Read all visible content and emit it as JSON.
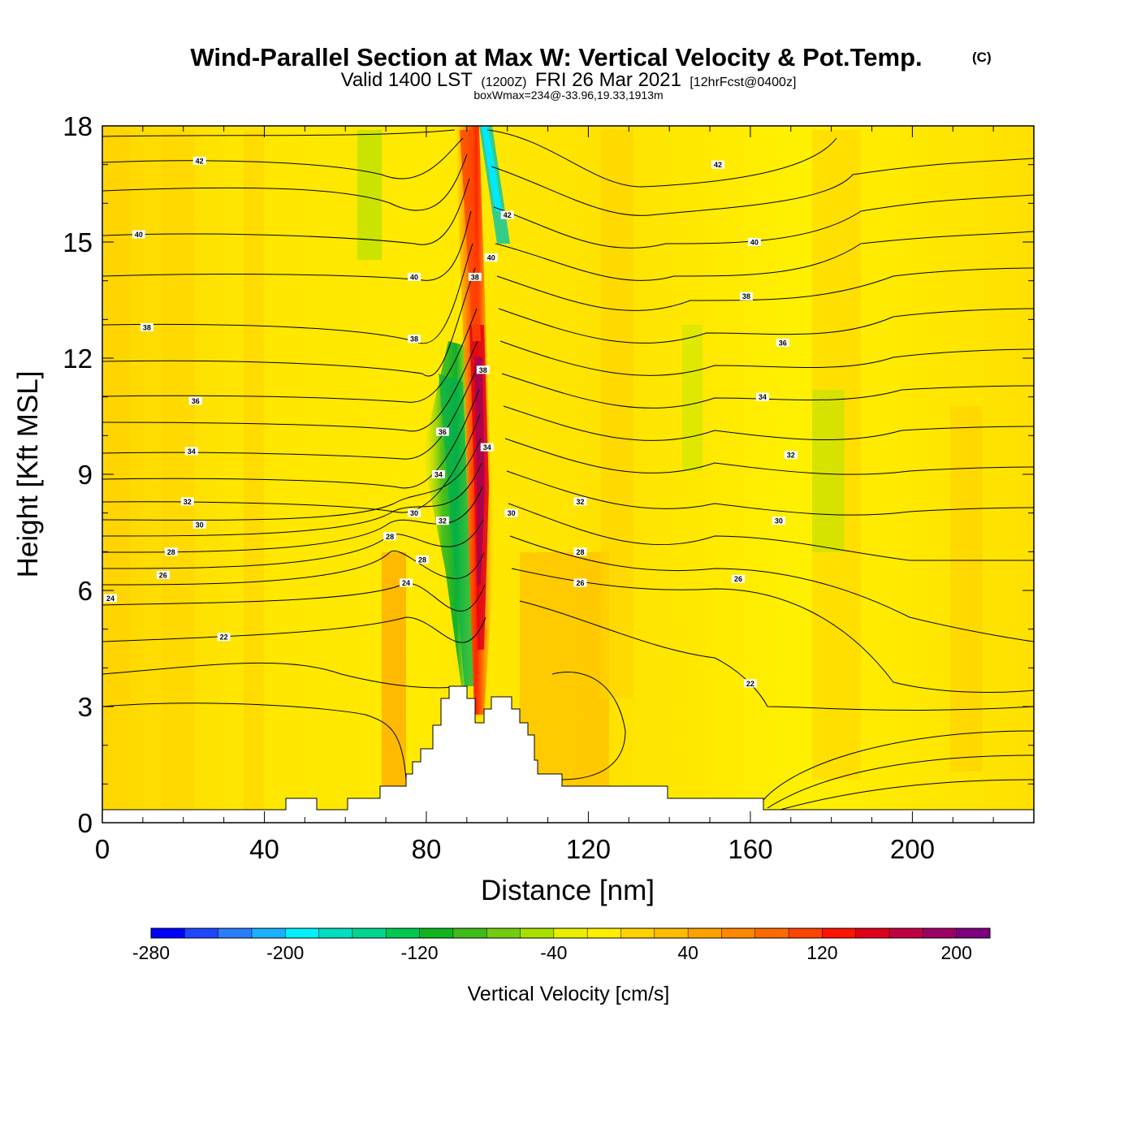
{
  "title": {
    "main": "Wind-Parallel Section at Max W: Vertical Velocity & Pot.Temp.",
    "copyright": "(C)",
    "valid_prefix": "Valid 1400 LST",
    "valid_utc": "(1200Z)",
    "valid_date": "FRI 26 Mar 2021",
    "forecast": "[12hrFcst@0400z]",
    "boxwmax": "boxWmax=234@-33.96,19.33,1913m"
  },
  "chart_data": {
    "type": "heatmap",
    "xlabel": "Distance [nm]",
    "ylabel": "Height [Kft MSL]",
    "xlim": [
      0,
      230
    ],
    "ylim": [
      0,
      18
    ],
    "x_ticks": [
      0,
      40,
      80,
      120,
      160,
      200
    ],
    "y_ticks": [
      0,
      3,
      6,
      9,
      12,
      15,
      18
    ],
    "colorbar": {
      "label": "Vertical Velocity [cm/s]",
      "min": -280,
      "max": 220,
      "step": 20,
      "ticks": [
        -280,
        -200,
        -120,
        -40,
        40,
        120,
        200
      ],
      "colors": [
        "#0000ff",
        "#1e46ff",
        "#2a7cff",
        "#18b0ff",
        "#00f0ff",
        "#00e0c0",
        "#00d690",
        "#00c850",
        "#10b420",
        "#40bc18",
        "#74cc10",
        "#a8e000",
        "#e8f000",
        "#ffee00",
        "#ffd200",
        "#ffbc00",
        "#ffa200",
        "#ff8800",
        "#ff6a00",
        "#ff4400",
        "#ff1400",
        "#e0001a",
        "#c00040",
        "#9c0064",
        "#7c0080"
      ]
    },
    "theta_contours": {
      "units": "C",
      "labels": [
        {
          "x": 24,
          "y": 17.1,
          "v": 42
        },
        {
          "x": 152,
          "y": 17.0,
          "v": 42
        },
        {
          "x": 100,
          "y": 15.7,
          "v": 42
        },
        {
          "x": 9,
          "y": 15.2,
          "v": 40
        },
        {
          "x": 77,
          "y": 14.1,
          "v": 40
        },
        {
          "x": 161,
          "y": 15.0,
          "v": 40
        },
        {
          "x": 96,
          "y": 14.6,
          "v": 40
        },
        {
          "x": 11,
          "y": 12.8,
          "v": 38
        },
        {
          "x": 77,
          "y": 12.5,
          "v": 38
        },
        {
          "x": 159,
          "y": 13.6,
          "v": 38
        },
        {
          "x": 92,
          "y": 14.1,
          "v": 38
        },
        {
          "x": 94,
          "y": 11.7,
          "v": 38
        },
        {
          "x": 23,
          "y": 10.9,
          "v": 36
        },
        {
          "x": 84,
          "y": 10.1,
          "v": 36
        },
        {
          "x": 168,
          "y": 12.4,
          "v": 36
        },
        {
          "x": 22,
          "y": 9.6,
          "v": 34
        },
        {
          "x": 83,
          "y": 9.0,
          "v": 34
        },
        {
          "x": 95,
          "y": 9.7,
          "v": 34
        },
        {
          "x": 163,
          "y": 11.0,
          "v": 34
        },
        {
          "x": 21,
          "y": 8.3,
          "v": 32
        },
        {
          "x": 84,
          "y": 7.8,
          "v": 32
        },
        {
          "x": 118,
          "y": 8.3,
          "v": 32
        },
        {
          "x": 170,
          "y": 9.5,
          "v": 32
        },
        {
          "x": 24,
          "y": 7.7,
          "v": 30
        },
        {
          "x": 77,
          "y": 8.0,
          "v": 30
        },
        {
          "x": 101,
          "y": 8.0,
          "v": 30
        },
        {
          "x": 167,
          "y": 7.8,
          "v": 30
        },
        {
          "x": 71,
          "y": 7.4,
          "v": 28
        },
        {
          "x": 17,
          "y": 7.0,
          "v": 28
        },
        {
          "x": 79,
          "y": 6.8,
          "v": 28
        },
        {
          "x": 118,
          "y": 7.0,
          "v": 28
        },
        {
          "x": 15,
          "y": 6.4,
          "v": 26
        },
        {
          "x": 118,
          "y": 6.2,
          "v": 26
        },
        {
          "x": 157,
          "y": 6.3,
          "v": 26
        },
        {
          "x": 75,
          "y": 6.2,
          "v": 24
        },
        {
          "x": 2,
          "y": 5.8,
          "v": 24
        },
        {
          "x": 30,
          "y": 4.8,
          "v": 22
        },
        {
          "x": 160,
          "y": 3.6,
          "v": 22
        }
      ]
    }
  }
}
